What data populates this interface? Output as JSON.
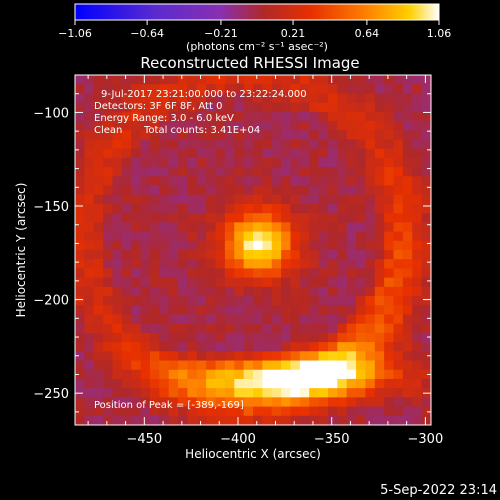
{
  "chart_data": {
    "type": "heatmap",
    "title": "Reconstructed RHESSI Image",
    "xlabel": "Heliocentric X (arcsec)",
    "ylabel": "Heliocentric Y (arcsec)",
    "xlim": [
      -487,
      -297
    ],
    "ylim": [
      -267,
      -80
    ],
    "x_ticks": [
      -450,
      -400,
      -350,
      -300
    ],
    "y_ticks": [
      -100,
      -150,
      -200,
      -250
    ],
    "x_tick_labels": [
      "−450",
      "−400",
      "−350",
      "−300"
    ],
    "y_tick_labels": [
      "−100",
      "−150",
      "−200",
      "−250"
    ],
    "colorbar": {
      "range": [
        -1.06,
        1.06
      ],
      "ticks": [
        -1.06,
        -0.64,
        -0.21,
        0.21,
        0.64,
        1.06
      ],
      "tick_labels": [
        "−1.06",
        "−0.64",
        "−0.21",
        "0.21",
        "0.64",
        "1.06"
      ],
      "unit_label": "(photons cm⁻² s⁻¹ asec⁻²)",
      "stops": [
        "#0000ff",
        "#5a2ad0",
        "#8830b0",
        "#b02828",
        "#e83000",
        "#ff8000",
        "#ffd000",
        "#ffffff"
      ]
    },
    "sources": [
      {
        "kind": "peak",
        "x": -389,
        "y": -170,
        "value": 1.06,
        "sigma_x": 13,
        "sigma_y": 12
      },
      {
        "kind": "arc",
        "x": -370,
        "y": -240,
        "value": 0.9
      },
      {
        "kind": "ring",
        "x": -397,
        "y": -166,
        "radius": 84,
        "value": 0.55
      }
    ],
    "annotations": [
      "9-Jul-2017 23:21:00.000 to 23:22:24.000",
      "Detectors: 3F 6F 8F, Att 0",
      "Energy Range: 3.0 - 6.0 keV",
      "Clean",
      "Total counts: 3.41E+04",
      "Position of Peak = [-389,-169]"
    ],
    "footer_timestamp": "5-Sep-2022 23:14"
  }
}
